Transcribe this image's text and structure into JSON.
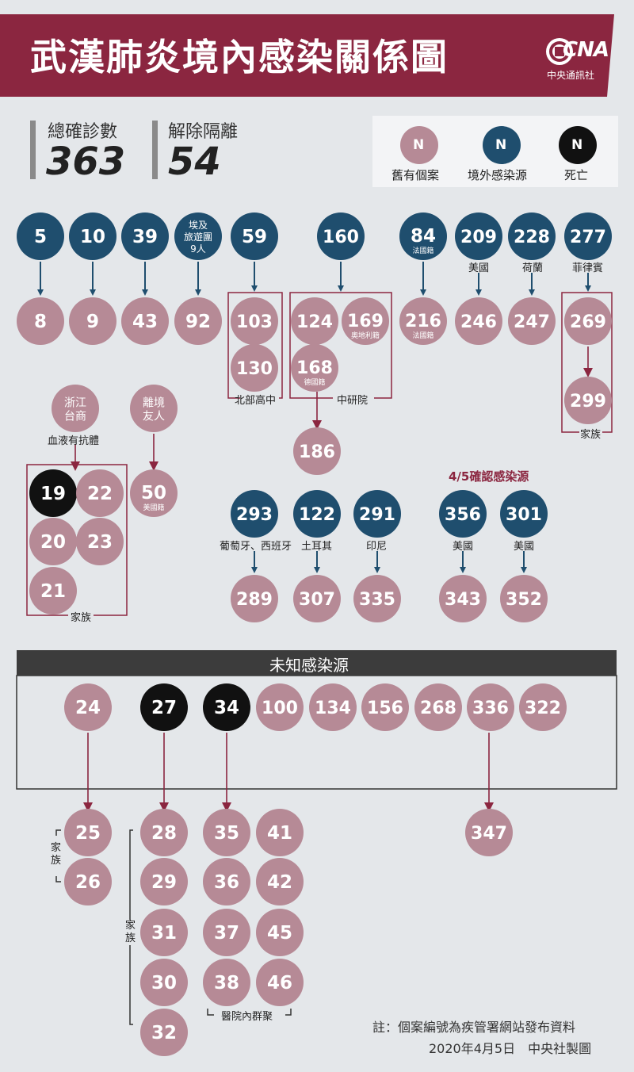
{
  "title": "武漢肺炎境內感染關係圖",
  "logo": {
    "letters": "CNA",
    "name": "中央通訊社"
  },
  "stats": [
    {
      "label": "總確診數",
      "value": "363"
    },
    {
      "label": "解除隔離",
      "value": "54"
    }
  ],
  "legend": [
    {
      "glyph": "N",
      "label": "舊有個案",
      "color": "#b68a96"
    },
    {
      "glyph": "N",
      "label": "境外感染源",
      "color": "#1f4e6e"
    },
    {
      "glyph": "N",
      "label": "死亡",
      "color": "#111111"
    }
  ],
  "colors": {
    "old": "#b68a96",
    "imported": "#1f4e6e",
    "death": "#111111",
    "accent": "#8b2640",
    "banner": "#8b2640"
  },
  "nodes": {
    "n5": {
      "label": "5",
      "type": "imported"
    },
    "n10": {
      "label": "10",
      "type": "imported"
    },
    "n39": {
      "label": "39",
      "type": "imported"
    },
    "tour": {
      "label": "埃及\n旅遊團\n9人",
      "type": "imported"
    },
    "n59": {
      "label": "59",
      "type": "imported"
    },
    "n160": {
      "label": "160",
      "type": "imported"
    },
    "n84": {
      "label": "84",
      "sub": "法國籍",
      "type": "imported"
    },
    "n209": {
      "label": "209",
      "type": "imported"
    },
    "n228": {
      "label": "228",
      "type": "imported"
    },
    "n277": {
      "label": "277",
      "type": "imported"
    },
    "n8": {
      "label": "8",
      "type": "old"
    },
    "n9": {
      "label": "9",
      "type": "old"
    },
    "n43": {
      "label": "43",
      "type": "old"
    },
    "n92": {
      "label": "92",
      "type": "old"
    },
    "n103": {
      "label": "103",
      "type": "old"
    },
    "n130": {
      "label": "130",
      "type": "old"
    },
    "n124": {
      "label": "124",
      "type": "old"
    },
    "n169": {
      "label": "169",
      "sub": "奧地利籍",
      "type": "old"
    },
    "n168": {
      "label": "168",
      "sub": "德國籍",
      "type": "old"
    },
    "n186": {
      "label": "186",
      "type": "old"
    },
    "n216": {
      "label": "216",
      "sub": "法國籍",
      "type": "old"
    },
    "n246": {
      "label": "246",
      "type": "old"
    },
    "n247": {
      "label": "247",
      "type": "old"
    },
    "n269": {
      "label": "269",
      "type": "old"
    },
    "n299": {
      "label": "299",
      "type": "old"
    },
    "zj": {
      "label": "浙江\n台商",
      "type": "old"
    },
    "fr": {
      "label": "離境\n友人",
      "type": "old"
    },
    "n19": {
      "label": "19",
      "type": "death"
    },
    "n22": {
      "label": "22",
      "type": "old"
    },
    "n20": {
      "label": "20",
      "type": "old"
    },
    "n23": {
      "label": "23",
      "type": "old"
    },
    "n21": {
      "label": "21",
      "type": "old"
    },
    "n50": {
      "label": "50",
      "sub": "美國籍",
      "type": "old"
    },
    "n293": {
      "label": "293",
      "type": "imported"
    },
    "n122": {
      "label": "122",
      "type": "imported"
    },
    "n291": {
      "label": "291",
      "type": "imported"
    },
    "n356": {
      "label": "356",
      "type": "imported"
    },
    "n301": {
      "label": "301",
      "type": "imported"
    },
    "n289": {
      "label": "289",
      "type": "old"
    },
    "n307": {
      "label": "307",
      "type": "old"
    },
    "n335": {
      "label": "335",
      "type": "old"
    },
    "n343": {
      "label": "343",
      "type": "old"
    },
    "n352": {
      "label": "352",
      "type": "old"
    },
    "n24": {
      "label": "24",
      "type": "old"
    },
    "n27": {
      "label": "27",
      "type": "death"
    },
    "n34": {
      "label": "34",
      "type": "death"
    },
    "n100": {
      "label": "100",
      "type": "old"
    },
    "n134": {
      "label": "134",
      "type": "old"
    },
    "n156": {
      "label": "156",
      "type": "old"
    },
    "n268": {
      "label": "268",
      "type": "old"
    },
    "n336": {
      "label": "336",
      "type": "old"
    },
    "n322": {
      "label": "322",
      "type": "old"
    },
    "n25": {
      "label": "25",
      "type": "old"
    },
    "n26": {
      "label": "26",
      "type": "old"
    },
    "n28": {
      "label": "28",
      "type": "old"
    },
    "n29": {
      "label": "29",
      "type": "old"
    },
    "n31": {
      "label": "31",
      "type": "old"
    },
    "n30": {
      "label": "30",
      "type": "old"
    },
    "n32": {
      "label": "32",
      "type": "old"
    },
    "n35": {
      "label": "35",
      "type": "old"
    },
    "n41": {
      "label": "41",
      "type": "old"
    },
    "n36": {
      "label": "36",
      "type": "old"
    },
    "n42": {
      "label": "42",
      "type": "old"
    },
    "n37": {
      "label": "37",
      "type": "old"
    },
    "n45": {
      "label": "45",
      "type": "old"
    },
    "n38": {
      "label": "38",
      "type": "old"
    },
    "n46": {
      "label": "46",
      "type": "old"
    },
    "n347": {
      "label": "347",
      "type": "old"
    }
  },
  "labels": {
    "us209": "美國",
    "nl228": "荷蘭",
    "ph277": "菲律賓",
    "school": "北部高中",
    "academia": "中研院",
    "family_269": "家族",
    "blood": "血液有抗體",
    "family_19": "家族",
    "confirmed_0405": "4/5確認感染源",
    "pt_es": "葡萄牙、西班牙",
    "turkey": "土耳其",
    "indonesia": "印尼",
    "us356": "美國",
    "us301": "美國",
    "unknown_source": "未知感染源",
    "family_25": "家族",
    "family_28": "家族",
    "hospital": "醫院內群聚"
  },
  "footer": {
    "note": "註：個案編號為疾管署網站發布資料",
    "credit": "2020年4月5日　中央社製圖"
  }
}
